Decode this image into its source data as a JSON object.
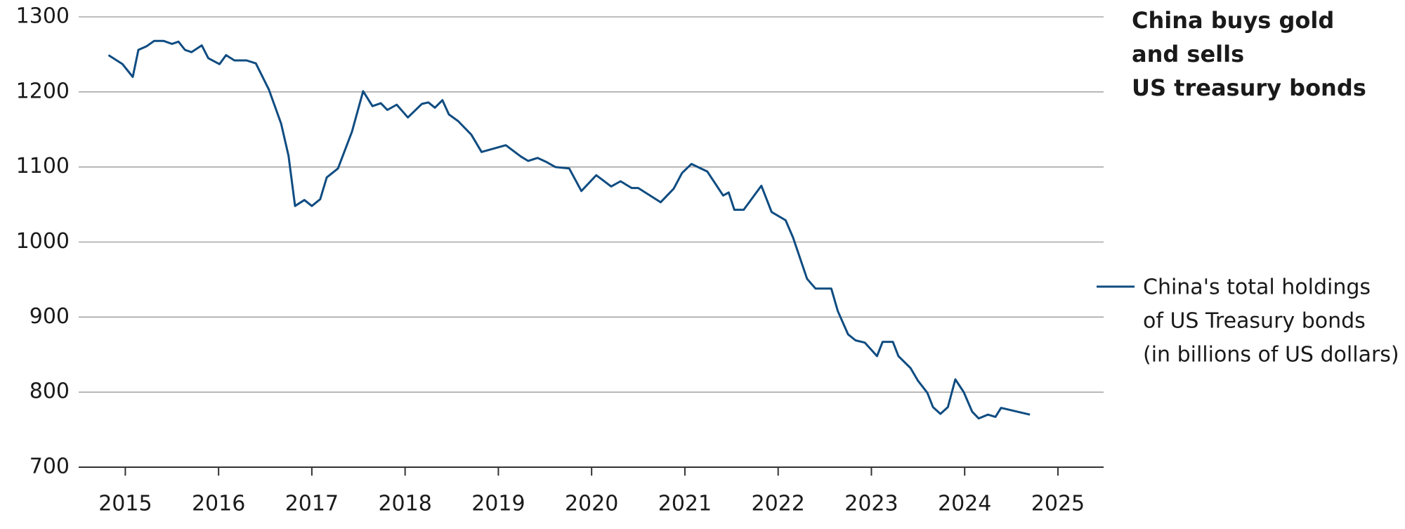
{
  "chart_data": {
    "type": "line",
    "title": [
      "China buys gold",
      "and sells",
      "US treasury bonds"
    ],
    "x": [
      2014.82,
      2014.97,
      2015.08,
      2015.14,
      2015.23,
      2015.31,
      2015.41,
      2015.5,
      2015.57,
      2015.64,
      2015.71,
      2015.82,
      2015.89,
      2016.01,
      2016.08,
      2016.17,
      2016.3,
      2016.4,
      2016.54,
      2016.67,
      2016.75,
      2016.82,
      2016.92,
      2017.0,
      2017.09,
      2017.16,
      2017.28,
      2017.43,
      2017.55,
      2017.65,
      2017.74,
      2017.81,
      2017.91,
      2018.03,
      2018.18,
      2018.25,
      2018.32,
      2018.4,
      2018.47,
      2018.57,
      2018.71,
      2018.82,
      2019.08,
      2019.24,
      2019.32,
      2019.42,
      2019.51,
      2019.61,
      2019.76,
      2019.89,
      2020.05,
      2020.21,
      2020.31,
      2020.43,
      2020.5,
      2020.74,
      2020.88,
      2020.97,
      2021.07,
      2021.24,
      2021.41,
      2021.47,
      2021.53,
      2021.63,
      2021.82,
      2021.93,
      2022.08,
      2022.16,
      2022.31,
      2022.4,
      2022.57,
      2022.64,
      2022.75,
      2022.83,
      2022.93,
      2023.06,
      2023.12,
      2023.23,
      2023.29,
      2023.42,
      2023.5,
      2023.6,
      2023.66,
      2023.74,
      2023.82,
      2023.9,
      2023.99,
      2024.08,
      2024.15,
      2024.25,
      2024.33,
      2024.39,
      2024.7
    ],
    "series": [
      {
        "name": [
          "China's total holdings",
          "of US Treasury bonds",
          "(in billions of US dollars)"
        ],
        "color": "#0f4c81",
        "values": [
          1249,
          1237,
          1220,
          1256,
          1261,
          1268,
          1268,
          1264,
          1267,
          1256,
          1253,
          1262,
          1245,
          1237,
          1249,
          1242,
          1242,
          1238,
          1203,
          1158,
          1115,
          1048,
          1056,
          1048,
          1057,
          1086,
          1098,
          1147,
          1201,
          1181,
          1185,
          1176,
          1183,
          1166,
          1184,
          1186,
          1179,
          1189,
          1170,
          1161,
          1143,
          1120,
          1129,
          1114,
          1108,
          1112,
          1107,
          1100,
          1098,
          1068,
          1089,
          1074,
          1081,
          1072,
          1072,
          1053,
          1071,
          1092,
          1104,
          1094,
          1062,
          1066,
          1043,
          1043,
          1075,
          1040,
          1029,
          1006,
          951,
          938,
          938,
          908,
          877,
          869,
          866,
          848,
          867,
          867,
          848,
          832,
          815,
          799,
          780,
          771,
          780,
          817,
          800,
          774,
          765,
          770,
          767,
          779,
          770
        ]
      }
    ],
    "xlim": [
      2014.5,
      2025.49
    ],
    "xticks": [
      2015,
      2016,
      2017,
      2018,
      2019,
      2020,
      2021,
      2022,
      2023,
      2024,
      2025
    ],
    "ylim": [
      700,
      1300
    ],
    "yticks": [
      700,
      800,
      900,
      1000,
      1100,
      1200,
      1300
    ],
    "grid": true,
    "legend": "right"
  }
}
